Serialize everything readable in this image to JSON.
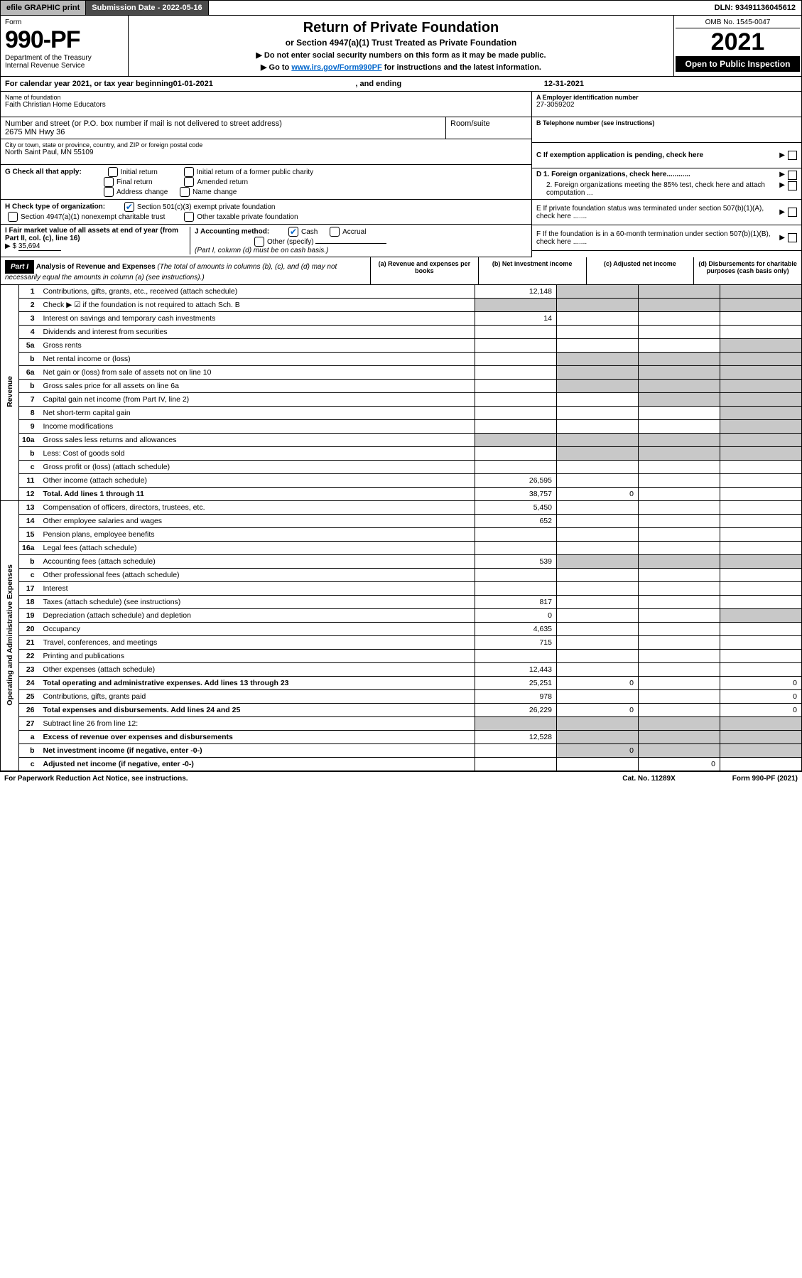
{
  "topbar": {
    "efile": "efile GRAPHIC print",
    "subdate_lbl": "Submission Date - ",
    "subdate": "2022-05-16",
    "dln_lbl": "DLN: ",
    "dln": "93491136045612"
  },
  "header": {
    "form_word": "Form",
    "form_num": "990-PF",
    "dept": "Department of the Treasury",
    "irs": "Internal Revenue Service",
    "title": "Return of Private Foundation",
    "subtitle": "or Section 4947(a)(1) Trust Treated as Private Foundation",
    "note1": "▶ Do not enter social security numbers on this form as it may be made public.",
    "note2_pre": "▶ Go to ",
    "note2_link": "www.irs.gov/Form990PF",
    "note2_post": " for instructions and the latest information.",
    "omb": "OMB No. 1545-0047",
    "year": "2021",
    "inspect": "Open to Public Inspection"
  },
  "cal": {
    "pre": "For calendar year 2021, or tax year beginning ",
    "begin": "01-01-2021",
    "mid": ", and ending ",
    "end": "12-31-2021"
  },
  "info": {
    "name_lbl": "Name of foundation",
    "name": "Faith Christian Home Educators",
    "addr_lbl": "Number and street (or P.O. box number if mail is not delivered to street address)",
    "addr": "2675 MN Hwy 36",
    "room_lbl": "Room/suite",
    "city_lbl": "City or town, state or province, country, and ZIP or foreign postal code",
    "city": "North Saint Paul, MN  55109",
    "a_lbl": "A Employer identification number",
    "ein": "27-3059202",
    "b_lbl": "B Telephone number (see instructions)",
    "c_lbl": "C If exemption application is pending, check here",
    "g_lbl": "G Check all that apply:",
    "g_init": "Initial return",
    "g_initformer": "Initial return of a former public charity",
    "g_final": "Final return",
    "g_amend": "Amended return",
    "g_addr": "Address change",
    "g_name": "Name change",
    "h_lbl": "H Check type of organization:",
    "h_501": "Section 501(c)(3) exempt private foundation",
    "h_4947": "Section 4947(a)(1) nonexempt charitable trust",
    "h_other": "Other taxable private foundation",
    "d1": "D 1. Foreign organizations, check here............",
    "d2": "2. Foreign organizations meeting the 85% test, check here and attach computation ...",
    "e_lbl": "E  If private foundation status was terminated under section 507(b)(1)(A), check here .......",
    "i_lbl": "I Fair market value of all assets at end of year (from Part II, col. (c), line 16)",
    "i_val": "35,694",
    "j_lbl": "J Accounting method:",
    "j_cash": "Cash",
    "j_acc": "Accrual",
    "j_other": "Other (specify)",
    "j_note": "(Part I, column (d) must be on cash basis.)",
    "f_lbl": "F  If the foundation is in a 60-month termination under section 507(b)(1)(B), check here .......",
    "arrow": "▶",
    "dollar": "$"
  },
  "part1": {
    "hdr": "Part I",
    "title": "Analysis of Revenue and Expenses",
    "note": " (The total of amounts in columns (b), (c), and (d) may not necessarily equal the amounts in column (a) (see instructions).)",
    "col_a": "(a)   Revenue and expenses per books",
    "col_b": "(b)   Net investment income",
    "col_c": "(c)   Adjusted net income",
    "col_d": "(d)   Disbursements for charitable purposes (cash basis only)"
  },
  "sections": {
    "rev": "Revenue",
    "exp": "Operating and Administrative Expenses"
  },
  "rows": [
    {
      "n": "1",
      "d": "Contributions, gifts, grants, etc., received (attach schedule)",
      "a": "12,148"
    },
    {
      "n": "2",
      "d": "Check ▶ ☑ if the foundation is not required to attach Sch. B"
    },
    {
      "n": "3",
      "d": "Interest on savings and temporary cash investments",
      "a": "14"
    },
    {
      "n": "4",
      "d": "Dividends and interest from securities"
    },
    {
      "n": "5a",
      "d": "Gross rents"
    },
    {
      "n": "b",
      "d": "Net rental income or (loss)"
    },
    {
      "n": "6a",
      "d": "Net gain or (loss) from sale of assets not on line 10"
    },
    {
      "n": "b",
      "d": "Gross sales price for all assets on line 6a"
    },
    {
      "n": "7",
      "d": "Capital gain net income (from Part IV, line 2)"
    },
    {
      "n": "8",
      "d": "Net short-term capital gain"
    },
    {
      "n": "9",
      "d": "Income modifications"
    },
    {
      "n": "10a",
      "d": "Gross sales less returns and allowances"
    },
    {
      "n": "b",
      "d": "Less: Cost of goods sold"
    },
    {
      "n": "c",
      "d": "Gross profit or (loss) (attach schedule)"
    },
    {
      "n": "11",
      "d": "Other income (attach schedule)",
      "a": "26,595"
    },
    {
      "n": "12",
      "d": "Total. Add lines 1 through 11",
      "a": "38,757",
      "b": "0",
      "bold": true
    },
    {
      "n": "13",
      "d": "Compensation of officers, directors, trustees, etc.",
      "a": "5,450"
    },
    {
      "n": "14",
      "d": "Other employee salaries and wages",
      "a": "652"
    },
    {
      "n": "15",
      "d": "Pension plans, employee benefits"
    },
    {
      "n": "16a",
      "d": "Legal fees (attach schedule)"
    },
    {
      "n": "b",
      "d": "Accounting fees (attach schedule)",
      "a": "539"
    },
    {
      "n": "c",
      "d": "Other professional fees (attach schedule)"
    },
    {
      "n": "17",
      "d": "Interest"
    },
    {
      "n": "18",
      "d": "Taxes (attach schedule) (see instructions)",
      "a": "817"
    },
    {
      "n": "19",
      "d": "Depreciation (attach schedule) and depletion",
      "a": "0"
    },
    {
      "n": "20",
      "d": "Occupancy",
      "a": "4,635"
    },
    {
      "n": "21",
      "d": "Travel, conferences, and meetings",
      "a": "715"
    },
    {
      "n": "22",
      "d": "Printing and publications"
    },
    {
      "n": "23",
      "d": "Other expenses (attach schedule)",
      "a": "12,443"
    },
    {
      "n": "24",
      "d": "Total operating and administrative expenses. Add lines 13 through 23",
      "a": "25,251",
      "b": "0",
      "d4": "0",
      "bold": true
    },
    {
      "n": "25",
      "d": "Contributions, gifts, grants paid",
      "a": "978",
      "d4": "0"
    },
    {
      "n": "26",
      "d": "Total expenses and disbursements. Add lines 24 and 25",
      "a": "26,229",
      "b": "0",
      "d4": "0",
      "bold": true
    },
    {
      "n": "27",
      "d": "Subtract line 26 from line 12:"
    },
    {
      "n": "a",
      "d": "Excess of revenue over expenses and disbursements",
      "a": "12,528",
      "bold": true
    },
    {
      "n": "b",
      "d": "Net investment income (if negative, enter -0-)",
      "b": "0",
      "bold": true
    },
    {
      "n": "c",
      "d": "Adjusted net income (if negative, enter -0-)",
      "c": "0",
      "bold": true
    }
  ],
  "footer": {
    "left": "For Paperwork Reduction Act Notice, see instructions.",
    "mid": "Cat. No. 11289X",
    "right": "Form 990-PF (2021)"
  }
}
